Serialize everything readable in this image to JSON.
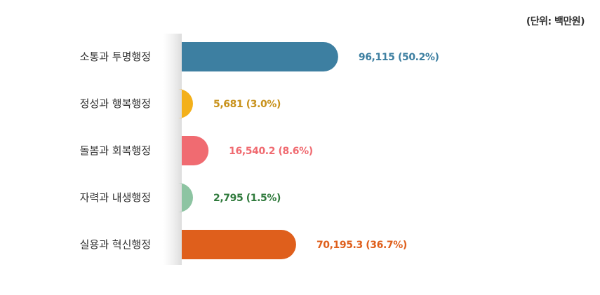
{
  "unit_label": "(단위: 백만원)",
  "chart_data": {
    "type": "bar",
    "orientation": "horizontal",
    "categories": [
      "소통과 투명행정",
      "정성과 행복행정",
      "돌봄과 회복행정",
      "자력과 내생행정",
      "실용과 혁신행정"
    ],
    "values": [
      96115,
      5681,
      16540.2,
      2795,
      70195.3
    ],
    "percents": [
      50.2,
      3.0,
      8.6,
      1.5,
      36.7
    ],
    "data_labels": [
      "96,115 (50.2%)",
      "5,681 (3.0%)",
      "16,540.2 (8.6%)",
      "2,795 (1.5%)",
      "70,195.3 (36.7%)"
    ],
    "colors": [
      "#3d7fa1",
      "#f3b01a",
      "#f06b71",
      "#8dc4a2",
      "#df5f1c"
    ],
    "label_colors": [
      "#3d7fa1",
      "#c8911a",
      "#f06b71",
      "#2f7a3c",
      "#df5f1c"
    ],
    "title": "",
    "xlabel": "",
    "ylabel": "",
    "grid": false,
    "legend": "none"
  }
}
